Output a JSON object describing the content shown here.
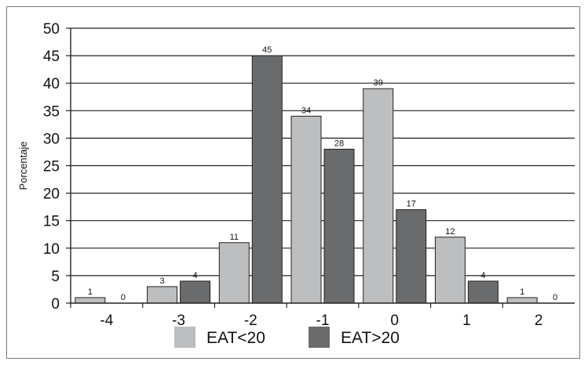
{
  "chart_data": {
    "type": "bar",
    "title": "",
    "xlabel": "",
    "ylabel": "Porcentaje",
    "ylim": [
      0,
      50
    ],
    "yticks": [
      0,
      5,
      10,
      15,
      20,
      25,
      30,
      35,
      40,
      45,
      50
    ],
    "grid": "horizontal",
    "legend_position": "bottom",
    "categories": [
      "-4",
      "-3",
      "-2",
      "-1",
      "0",
      "1",
      "2"
    ],
    "series": [
      {
        "name": "EAT<20",
        "color": "#bdbec0",
        "values": [
          1,
          3,
          11,
          34,
          39,
          12,
          1
        ]
      },
      {
        "name": "EAT>20",
        "color": "#6a6b6d",
        "values": [
          0,
          4,
          45,
          28,
          17,
          4,
          0
        ]
      }
    ]
  }
}
